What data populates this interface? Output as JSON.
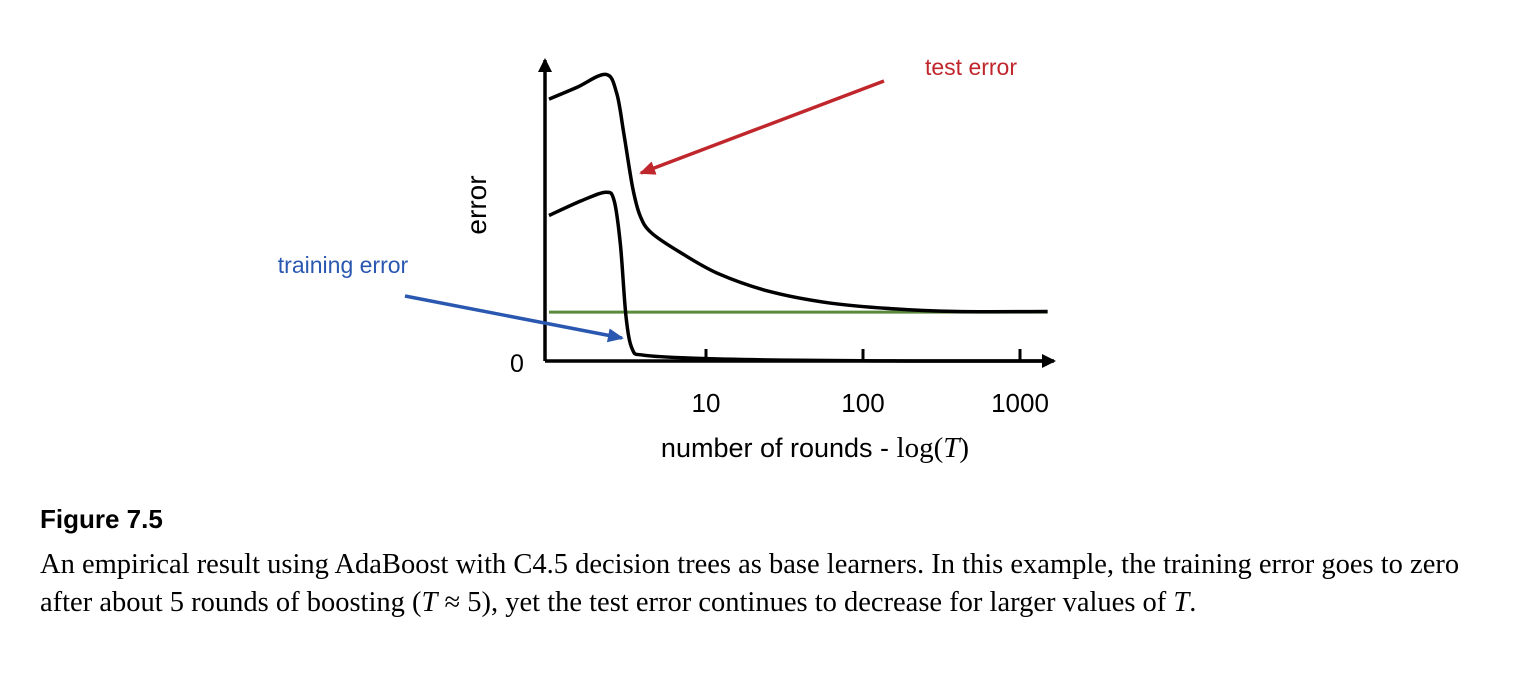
{
  "chart_data": {
    "type": "line",
    "xlabel_text": "number of rounds - ",
    "xlabel_math": "log(",
    "xlabel_var": "T",
    "xlabel_close": ")",
    "ylabel": "error",
    "y_zero_label": "0",
    "x_scale": "log",
    "x_ticks": [
      10,
      100,
      1000
    ],
    "x_tick_labels": [
      "10",
      "100",
      "1000"
    ],
    "xlim": [
      1,
      1500
    ],
    "ylim": [
      0,
      1
    ],
    "grid": false,
    "series": [
      {
        "name": "test error",
        "color": "#000000",
        "points": [
          [
            1,
            0.9
          ],
          [
            1.5,
            0.94
          ],
          [
            2.3,
            0.985
          ],
          [
            2.7,
            0.92
          ],
          [
            3.0,
            0.78
          ],
          [
            3.4,
            0.6
          ],
          [
            3.8,
            0.5
          ],
          [
            4.5,
            0.44
          ],
          [
            7,
            0.37
          ],
          [
            12,
            0.3
          ],
          [
            25,
            0.24
          ],
          [
            60,
            0.2
          ],
          [
            150,
            0.18
          ],
          [
            400,
            0.17
          ],
          [
            1500,
            0.17
          ]
        ]
      },
      {
        "name": "training error",
        "color": "#000000",
        "points": [
          [
            1,
            0.5
          ],
          [
            1.6,
            0.55
          ],
          [
            2.3,
            0.58
          ],
          [
            2.6,
            0.55
          ],
          [
            2.85,
            0.4
          ],
          [
            3.1,
            0.15
          ],
          [
            3.4,
            0.04
          ],
          [
            4,
            0.02
          ],
          [
            8,
            0.01
          ],
          [
            30,
            0.003
          ],
          [
            200,
            0.0
          ],
          [
            1500,
            0.0
          ]
        ]
      },
      {
        "name": "asymptote",
        "color": "#5a8a3c",
        "points": [
          [
            1,
            0.168
          ],
          [
            1500,
            0.168
          ]
        ]
      }
    ],
    "annotations": [
      {
        "text": "test error",
        "color": "#c0272d"
      },
      {
        "text": "training error",
        "color": "#2a58b0"
      }
    ]
  },
  "caption": {
    "title": "Figure  7.5",
    "p1": "An empirical result using AdaBoost with C4.5 decision trees as base learners. In this example, the training error goes to zero after about 5 rounds of boosting (",
    "m1": "T",
    "p2": " ≈ 5), yet the test error continues to decrease for larger values of ",
    "m2": "T",
    "p3": "."
  }
}
